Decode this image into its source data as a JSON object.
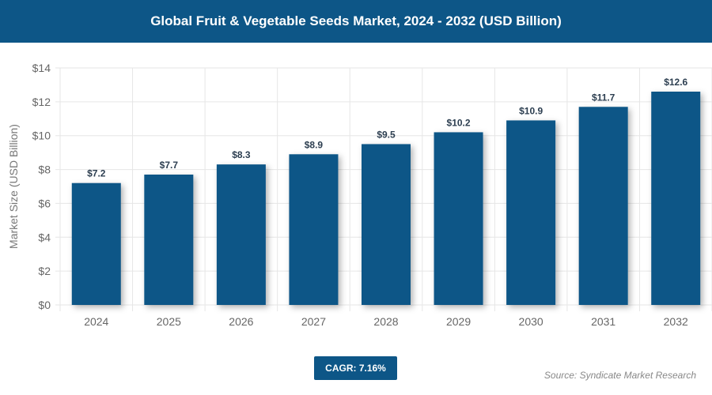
{
  "title": "Global Fruit & Vegetable Seeds Market, 2024 - 2032 (USD Billion)",
  "cagr_label": "CAGR: 7.16%",
  "source": "Source: Syndicate Market Research",
  "colors": {
    "bar": "#0d5687",
    "header": "#0d5687",
    "label": "#2c3e50"
  },
  "chart_data": {
    "type": "bar",
    "categories": [
      "2024",
      "2025",
      "2026",
      "2027",
      "2028",
      "2029",
      "2030",
      "2031",
      "2032"
    ],
    "values": [
      7.2,
      7.7,
      8.3,
      8.9,
      9.5,
      10.2,
      10.9,
      11.7,
      12.6
    ],
    "data_labels": [
      "$7.2",
      "$7.7",
      "$8.3",
      "$8.9",
      "$9.5",
      "$10.2",
      "$10.9",
      "$11.7",
      "$12.6"
    ],
    "ylabel": "Market Size (USD Billion)",
    "xlabel": "",
    "ylim": [
      0,
      14
    ],
    "yticks": [
      "$0",
      "$2",
      "$4",
      "$6",
      "$8",
      "$10",
      "$12",
      "$14"
    ],
    "grid": true
  }
}
